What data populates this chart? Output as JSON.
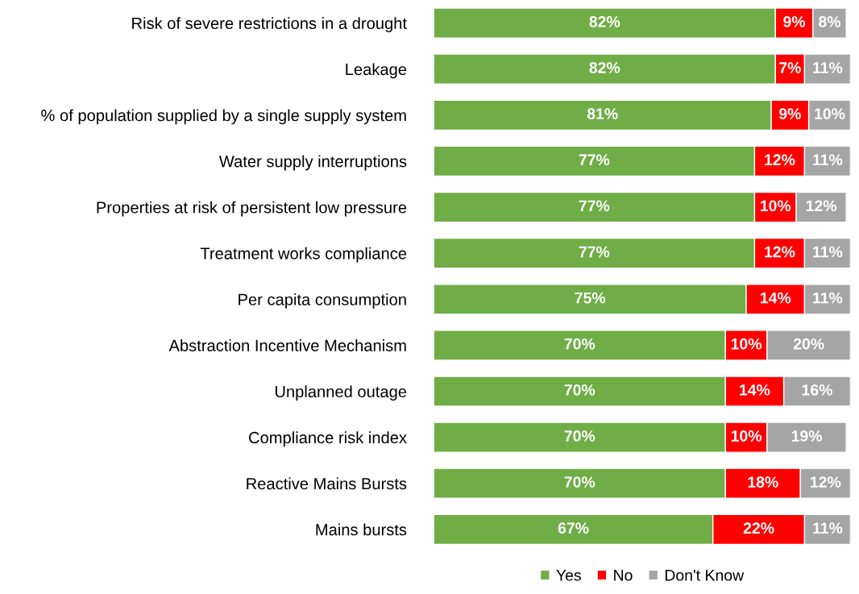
{
  "chart_data": {
    "type": "bar",
    "orientation": "horizontal",
    "stacked": true,
    "legend": "bottom",
    "grid": false,
    "categories": [
      "Risk of severe restrictions in a drought",
      "Leakage",
      "% of population supplied by a single supply system",
      "Water supply interruptions",
      "Properties at risk of persistent low pressure",
      "Treatment works compliance",
      "Per capita consumption",
      "Abstraction Incentive Mechanism",
      "Unplanned outage",
      "Compliance risk index",
      "Reactive Mains Bursts",
      "Mains bursts"
    ],
    "series": [
      {
        "name": "Yes",
        "color": "#70ad47",
        "values": [
          82,
          82,
          81,
          77,
          77,
          77,
          75,
          70,
          70,
          70,
          70,
          67
        ],
        "value_labels": [
          "82%",
          "82%",
          "81%",
          "77%",
          "77%",
          "77%",
          "75%",
          "70%",
          "70%",
          "70%",
          "70%",
          "67%"
        ]
      },
      {
        "name": "No",
        "color": "#ff0000",
        "values": [
          9,
          7,
          9,
          12,
          10,
          12,
          14,
          10,
          14,
          10,
          18,
          22
        ],
        "value_labels": [
          "9%",
          "7%",
          "9%",
          "12%",
          "10%",
          "12%",
          "14%",
          "10%",
          "14%",
          "10%",
          "18%",
          "22%"
        ]
      },
      {
        "name": "Don't Know",
        "color": "#a5a5a5",
        "values": [
          8,
          11,
          10,
          11,
          12,
          11,
          11,
          20,
          16,
          19,
          12,
          11
        ],
        "value_labels": [
          "8%",
          "11%",
          "10%",
          "11%",
          "12%",
          "11%",
          "11%",
          "20%",
          "16%",
          "19%",
          "12%",
          "11%"
        ]
      }
    ]
  }
}
